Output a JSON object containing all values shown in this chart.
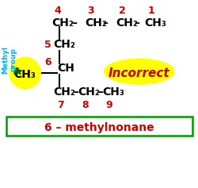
{
  "bg_color": "#ffffff",
  "title_text": "6 – methylnonane",
  "title_color": "#cc0000",
  "title_box_color": "#009900",
  "incorrect_text": "Incorrect",
  "incorrect_color": "#cc0000",
  "incorrect_bg": "#ffff00",
  "methyl_group_color": "#00aaff",
  "chain_color": "#000000",
  "number_color": "#cc0000",
  "ch3_circle_color": "#ffff00",
  "arrow_color": "#006600",
  "top_chain": [
    "CH₂",
    "–",
    "CH₂",
    "–",
    "CH₂",
    "–",
    "CH₃"
  ],
  "top_nums": [
    "4",
    "3",
    "2",
    "1"
  ],
  "bot_chain": [
    "CH₂",
    "–",
    "CH₂",
    "–",
    "CH₃"
  ],
  "bot_nums": [
    "7",
    "8",
    "9"
  ],
  "mid_label5": "5CH₂",
  "mid_label6": "6",
  "mid_labelCH": "CH",
  "ch3_label": "CH₃"
}
